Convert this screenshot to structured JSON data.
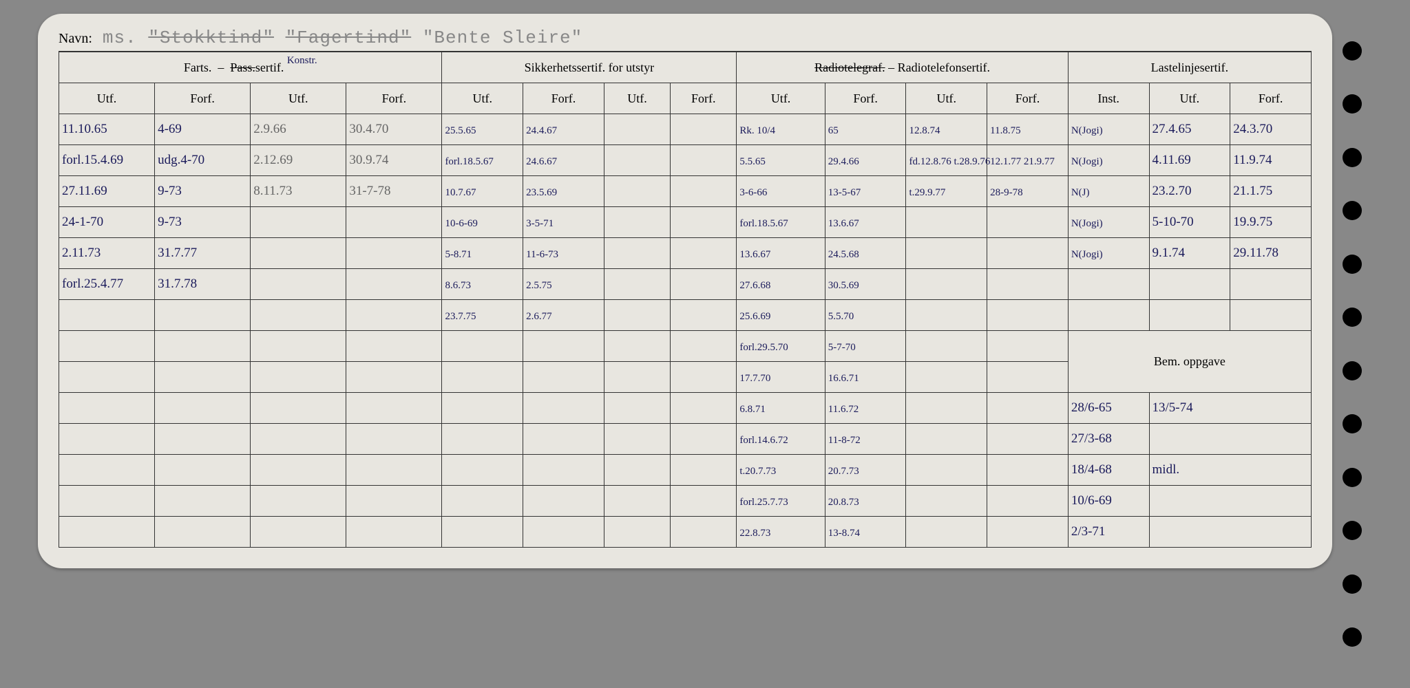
{
  "title": {
    "label": "Navn:",
    "prefix": "ms.",
    "name1": "\"Stokktind\"",
    "name2": "\"Fagertind\"",
    "name3": "\"Bente Sleire\""
  },
  "headers": {
    "group1": "Farts.",
    "group1b": "Pass.",
    "group1c": "sertif.",
    "group1_annot": "Konstr.",
    "group2": "Sikkerhetssertif. for utstyr",
    "group3a": "Radiotelegraf.",
    "group3b": "– Radiotelefonsertif.",
    "group4": "Lastelinjesertif.",
    "sub_utf": "Utf.",
    "sub_forf": "Forf.",
    "sub_inst": "Inst.",
    "bem": "Bem. oppgave"
  },
  "rows": [
    {
      "c1": "11.10.65",
      "c2": "4-69",
      "c3": "2.9.66",
      "c4": "30.4.70",
      "c5": "25.5.65",
      "c6": "24.4.67",
      "c7": "",
      "c8": "",
      "c9": "Rk. 10/4",
      "c10": "65",
      "c11": "12.8.74",
      "c12": "11.8.75",
      "c13": "N(Jogi)",
      "c14": "27.4.65",
      "c15": "24.3.70"
    },
    {
      "c1": "forl.15.4.69",
      "c2": "udg.4-70",
      "c3": "2.12.69",
      "c4": "30.9.74",
      "c5": "forl.18.5.67",
      "c6": "24.6.67",
      "c7": "",
      "c8": "",
      "c9": "5.5.65",
      "c10": "29.4.66",
      "c11": "fd.12.8.76 t.28.9.76",
      "c12": "12.1.77 21.9.77",
      "c13": "N(Jogi)",
      "c14": "4.11.69",
      "c15": "11.9.74"
    },
    {
      "c1": "27.11.69",
      "c2": "9-73",
      "c3": "8.11.73",
      "c4": "31-7-78",
      "c5": "10.7.67",
      "c6": "23.5.69",
      "c7": "",
      "c8": "",
      "c9": "3-6-66",
      "c10": "13-5-67",
      "c11": "t.29.9.77",
      "c12": "28-9-78",
      "c13": "N(J)",
      "c14": "23.2.70",
      "c15": "21.1.75"
    },
    {
      "c1": "24-1-70",
      "c2": "9-73",
      "c3": "",
      "c4": "",
      "c5": "10-6-69",
      "c6": "3-5-71",
      "c7": "",
      "c8": "",
      "c9": "forl.18.5.67",
      "c10": "13.6.67",
      "c11": "",
      "c12": "",
      "c13": "N(Jogi)",
      "c14": "5-10-70",
      "c15": "19.9.75"
    },
    {
      "c1": "2.11.73",
      "c2": "31.7.77",
      "c3": "",
      "c4": "",
      "c5": "5-8.71",
      "c6": "11-6-73",
      "c7": "",
      "c8": "",
      "c9": "13.6.67",
      "c10": "24.5.68",
      "c11": "",
      "c12": "",
      "c13": "N(Jogi)",
      "c14": "9.1.74",
      "c15": "29.11.78"
    },
    {
      "c1": "forl.25.4.77",
      "c2": "31.7.78",
      "c3": "",
      "c4": "",
      "c5": "8.6.73",
      "c6": "2.5.75",
      "c7": "",
      "c8": "",
      "c9": "27.6.68",
      "c10": "30.5.69",
      "c11": "",
      "c12": "",
      "c13": "",
      "c14": "",
      "c15": ""
    },
    {
      "c1": "",
      "c2": "",
      "c3": "",
      "c4": "",
      "c5": "23.7.75",
      "c6": "2.6.77",
      "c7": "",
      "c8": "",
      "c9": "25.6.69",
      "c10": "5.5.70",
      "c11": "",
      "c12": "",
      "c13": "",
      "c14": "",
      "c15": ""
    },
    {
      "c1": "",
      "c2": "",
      "c3": "",
      "c4": "",
      "c5": "",
      "c6": "",
      "c7": "",
      "c8": "",
      "c9": "forl.29.5.70",
      "c10": "5-7-70",
      "c11": "",
      "c12": ""
    },
    {
      "c1": "",
      "c2": "",
      "c3": "",
      "c4": "",
      "c5": "",
      "c6": "",
      "c7": "",
      "c8": "",
      "c9": "17.7.70",
      "c10": "16.6.71",
      "c11": "",
      "c12": ""
    },
    {
      "c1": "",
      "c2": "",
      "c3": "",
      "c4": "",
      "c5": "",
      "c6": "",
      "c7": "",
      "c8": "",
      "c9": "6.8.71",
      "c10": "11.6.72",
      "c11": "",
      "c12": "",
      "b1": "28/6-65",
      "b2": "13/5-74"
    },
    {
      "c1": "",
      "c2": "",
      "c3": "",
      "c4": "",
      "c5": "",
      "c6": "",
      "c7": "",
      "c8": "",
      "c9": "forl.14.6.72",
      "c10": "11-8-72",
      "c11": "",
      "c12": "",
      "b1": "27/3-68",
      "b2": ""
    },
    {
      "c1": "",
      "c2": "",
      "c3": "",
      "c4": "",
      "c5": "",
      "c6": "",
      "c7": "",
      "c8": "",
      "c9": "t.20.7.73",
      "c10": "20.7.73",
      "c11": "",
      "c12": "",
      "b1": "18/4-68",
      "b2": "midl."
    },
    {
      "c1": "",
      "c2": "",
      "c3": "",
      "c4": "",
      "c5": "",
      "c6": "",
      "c7": "",
      "c8": "",
      "c9": "forl.25.7.73",
      "c10": "20.8.73",
      "c11": "",
      "c12": "",
      "b1": "10/6-69",
      "b2": ""
    },
    {
      "c1": "",
      "c2": "",
      "c3": "",
      "c4": "",
      "c5": "",
      "c6": "",
      "c7": "",
      "c8": "",
      "c9": "22.8.73",
      "c10": "13-8.74",
      "c11": "",
      "c12": "",
      "b1": "2/3-71",
      "b2": ""
    }
  ],
  "colors": {
    "background": "#e8e6e0",
    "border": "#333333",
    "ink_blue": "#1a1a5a",
    "ink_gray": "#666666",
    "title_gray": "#888888"
  }
}
